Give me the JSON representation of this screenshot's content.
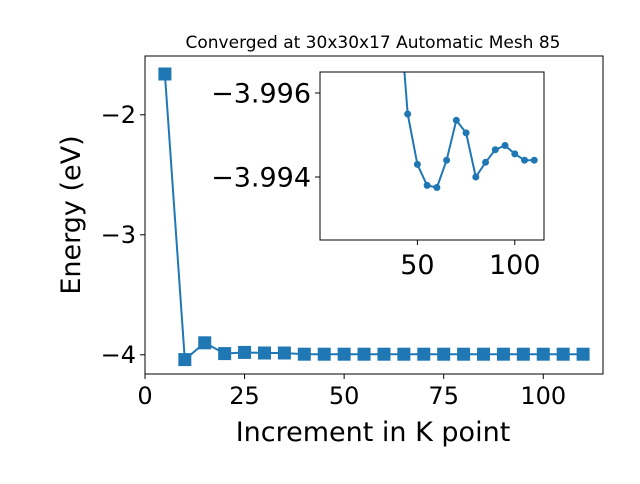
{
  "colors": {
    "series": "#1f77b4",
    "axis": "#000000",
    "background": "#ffffff"
  },
  "chart_data": [
    {
      "type": "line",
      "title": "Converged at 30x30x17 Automatic Mesh 85",
      "xlabel": "Increment in K point",
      "ylabel": "Energy (eV)",
      "xlim": [
        0,
        115
      ],
      "ylim": [
        -4.16,
        -1.51
      ],
      "xticks": [
        0,
        25,
        50,
        75,
        100
      ],
      "yticks": [
        -4,
        -3,
        -2
      ],
      "xtick_labels": [
        "0",
        "25",
        "50",
        "75",
        "100"
      ],
      "ytick_labels": [
        "−4",
        "−3",
        "−2"
      ],
      "marker": "square",
      "grid": false,
      "x": [
        5,
        10,
        15,
        20,
        25,
        30,
        35,
        40,
        45,
        50,
        55,
        60,
        65,
        70,
        75,
        80,
        85,
        90,
        95,
        100,
        105,
        110
      ],
      "y": [
        -1.66,
        -4.04,
        -3.9,
        -3.99,
        -3.98,
        -3.985,
        -3.985,
        -3.995,
        -3.995,
        -3.995,
        -3.995,
        -3.995,
        -3.995,
        -3.995,
        -3.995,
        -3.995,
        -3.995,
        -3.995,
        -3.995,
        -3.995,
        -3.995,
        -3.995
      ]
    },
    {
      "type": "line",
      "title": "",
      "xlim": [
        0,
        115
      ],
      "ylim": [
        -3.9925,
        -3.9965
      ],
      "xticks": [
        50,
        100
      ],
      "yticks": [
        -3.996,
        -3.994
      ],
      "xtick_labels": [
        "50",
        "100"
      ],
      "ytick_labels": [
        "−3.996",
        "−3.994"
      ],
      "marker": "circle",
      "grid": false,
      "x": [
        40,
        45,
        50,
        55,
        60,
        65,
        70,
        75,
        80,
        85,
        90,
        95,
        100,
        105,
        110
      ],
      "y": [
        -3.9985,
        -3.9955,
        -3.9943,
        -3.9938,
        -3.99375,
        -3.9944,
        -3.99535,
        -3.99505,
        -3.994,
        -3.99435,
        -3.99465,
        -3.99475,
        -3.99455,
        -3.9944,
        -3.9944
      ]
    }
  ]
}
